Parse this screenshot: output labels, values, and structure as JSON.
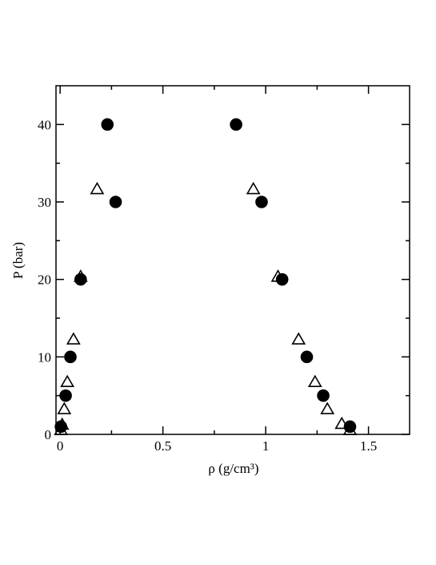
{
  "chart_data": {
    "type": "scatter",
    "xlabel": "ρ (g/cm³)",
    "ylabel": "P (bar)",
    "xlim": [
      -0.02,
      1.7
    ],
    "ylim": [
      0,
      45
    ],
    "xticks": [
      0,
      0.5,
      1,
      1.5
    ],
    "yticks": [
      0,
      10,
      20,
      30,
      40
    ],
    "xminor": [
      0.25,
      0.75,
      1.25
    ],
    "yminor": [
      5,
      15,
      25,
      35
    ],
    "series": [
      {
        "marker": "circle",
        "color": "#000000",
        "filled": true,
        "x": [
          0.004,
          0.027,
          0.05,
          0.1,
          0.27,
          0.23,
          0.856,
          0.98,
          1.08,
          1.2,
          1.28,
          1.41
        ],
        "y": [
          1,
          5,
          10,
          20,
          30,
          40,
          40,
          30,
          20,
          10,
          5,
          1
        ]
      },
      {
        "marker": "triangle",
        "color": "#000000",
        "filled": false,
        "x": [
          0.004,
          0.01,
          0.02,
          0.035,
          0.065,
          0.1,
          0.18,
          0.94,
          1.06,
          1.16,
          1.24,
          1.3,
          1.37,
          1.41
        ],
        "y": [
          0.5,
          1.2,
          3.2,
          6.7,
          12.2,
          20.3,
          31.6,
          31.6,
          20.3,
          12.2,
          6.7,
          3.2,
          1.3,
          0.5
        ]
      }
    ]
  }
}
